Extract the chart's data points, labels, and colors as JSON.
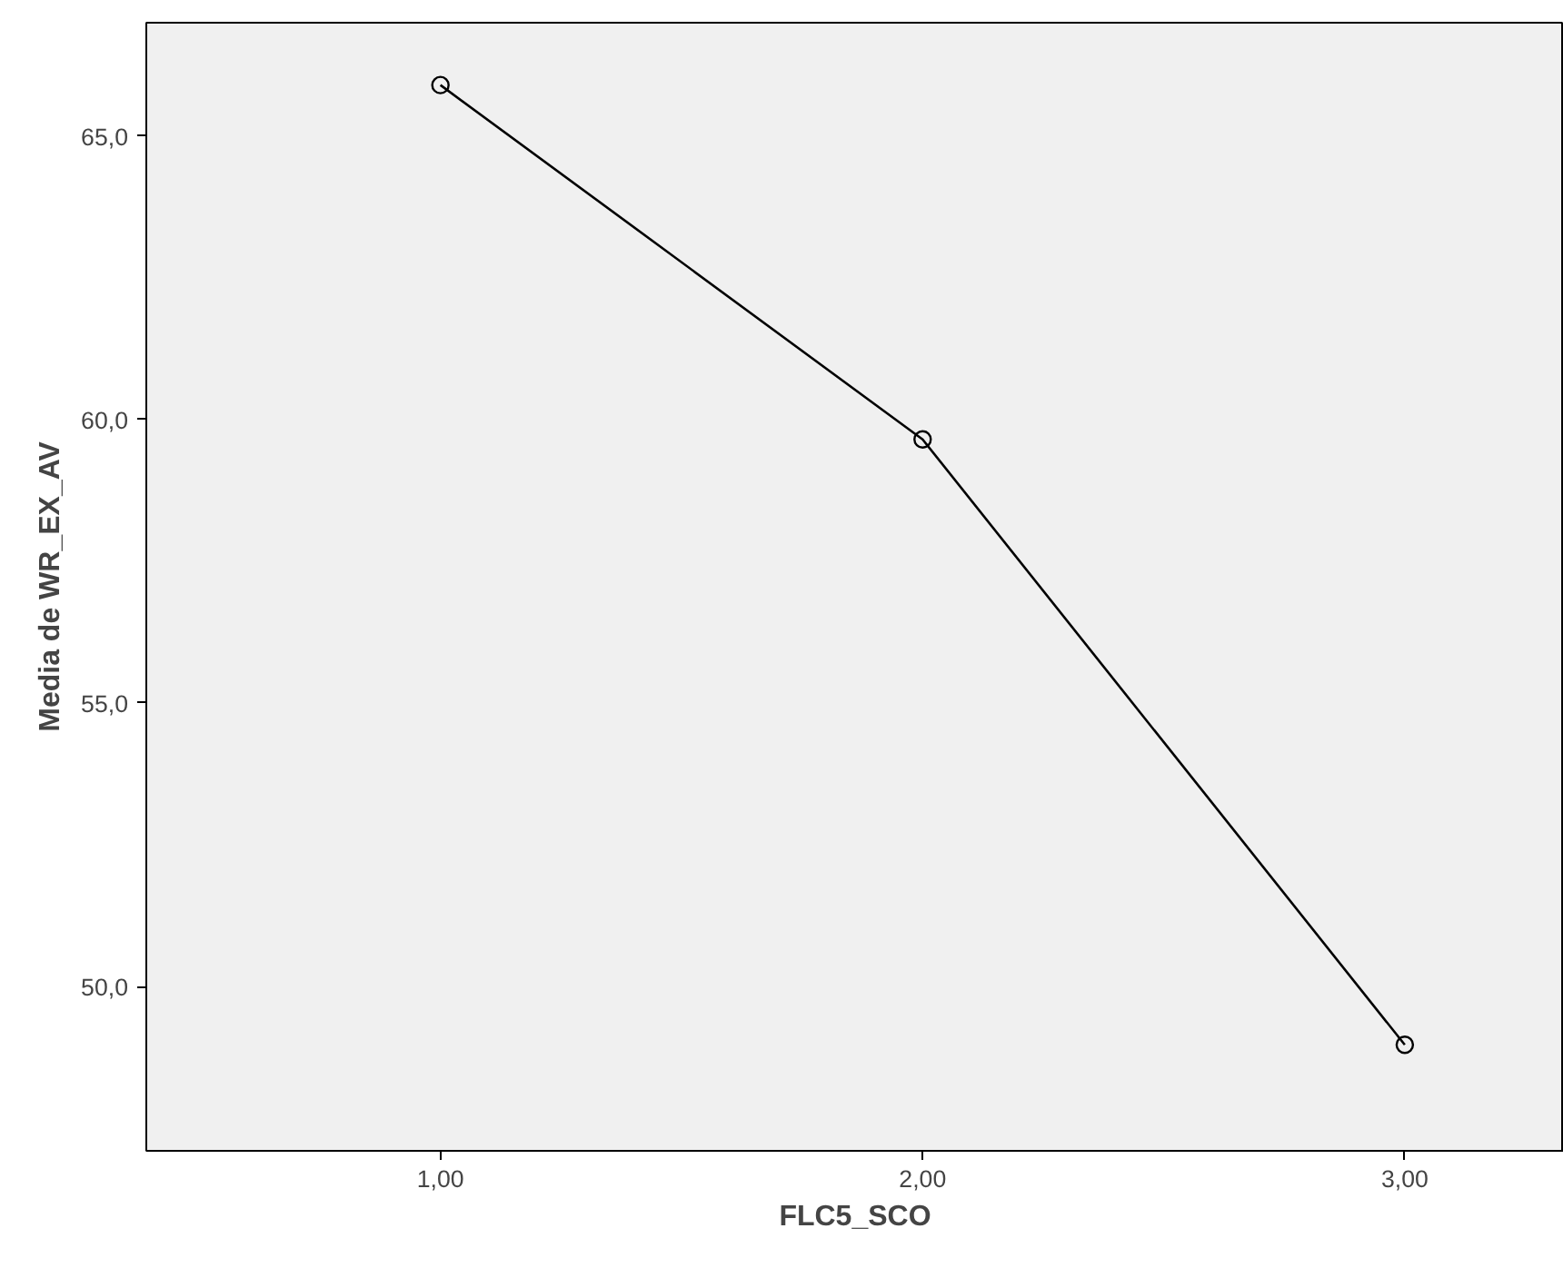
{
  "chart_data": {
    "type": "line",
    "xlabel": "FLC5_SCO",
    "ylabel": "Media de WR_EX_AV",
    "x": [
      1,
      2,
      3
    ],
    "series": [
      {
        "color": "#000000",
        "values": [
          65.9,
          59.65,
          48.97
        ]
      }
    ],
    "xlim": [
      0.39,
      3.33
    ],
    "xticks": [
      {
        "value": 1,
        "label": "1,00"
      },
      {
        "value": 2,
        "label": "2,00"
      },
      {
        "value": 3,
        "label": "3,00"
      }
    ],
    "ylim": [
      47.1,
      67.0
    ],
    "yticks": [
      {
        "value": 50,
        "label": "50,0"
      },
      {
        "value": 55,
        "label": "55,0"
      },
      {
        "value": 60,
        "label": "60,0"
      },
      {
        "value": 65,
        "label": "65,0"
      }
    ],
    "grid": false,
    "marker": "circle",
    "line_style": "solid"
  }
}
